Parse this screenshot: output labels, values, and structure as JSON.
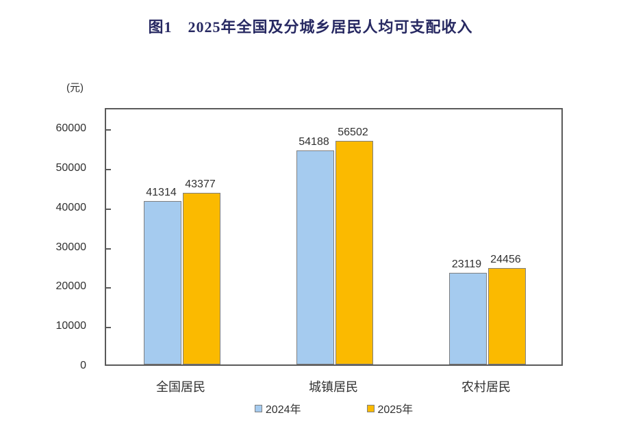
{
  "title": "图1　2025年全国及分城乡居民人均可支配收入",
  "chart_data": {
    "type": "bar",
    "title": "图1　2025年全国及分城乡居民人均可支配收入",
    "ylabel_unit": "(元)",
    "categories": [
      "全国居民",
      "城镇居民",
      "农村居民"
    ],
    "series": [
      {
        "name": "2024年",
        "color": "#A5CBEF",
        "values": [
          41314,
          54188,
          23119
        ]
      },
      {
        "name": "2025年",
        "color": "#FBBA00",
        "values": [
          43377,
          56502,
          24456
        ]
      }
    ],
    "yticks": [
      0,
      10000,
      20000,
      30000,
      40000,
      50000,
      60000
    ],
    "ylim": [
      0,
      65000
    ],
    "grid": false,
    "legend_position": "bottom",
    "colors": {
      "title_text": "#272962",
      "axis_border": "#595959",
      "label_text": "#303030",
      "bar_border": "#7f7f7f"
    }
  }
}
